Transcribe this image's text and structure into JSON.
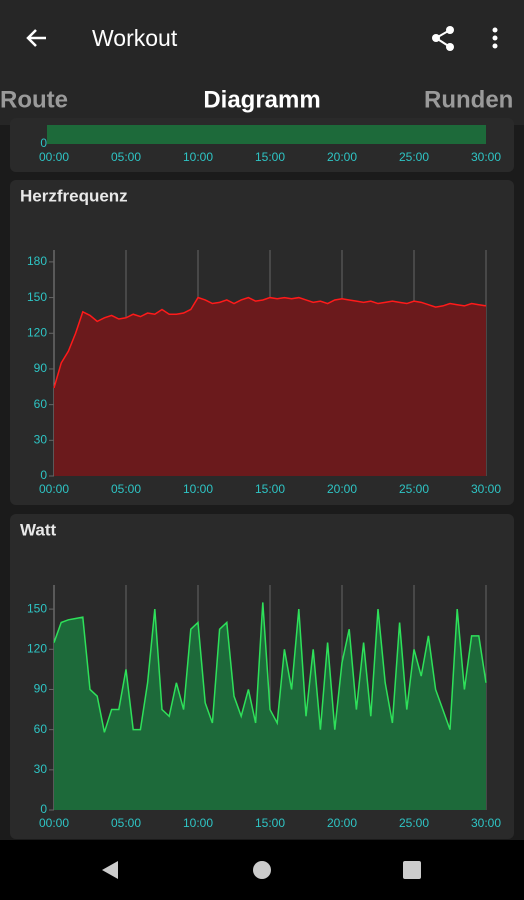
{
  "app_bar": {
    "title": "Workout"
  },
  "tabs": [
    "Route",
    "Diagramm",
    "Runden"
  ],
  "chart_data": [
    {
      "type": "area",
      "xlim": [
        0,
        30
      ],
      "xticks": [
        {
          "value": 0,
          "label": "00:00"
        },
        {
          "value": 5,
          "label": "05:00"
        },
        {
          "value": 10,
          "label": "10:00"
        },
        {
          "value": 15,
          "label": "15:00"
        },
        {
          "value": 20,
          "label": "20:00"
        },
        {
          "value": 25,
          "label": "25:00"
        },
        {
          "value": 30,
          "label": "30:00"
        }
      ],
      "yticks": [
        0
      ]
    },
    {
      "type": "area",
      "title": "Herzfrequenz",
      "xlim": [
        0,
        30
      ],
      "ylim": [
        0,
        190
      ],
      "xticks": [
        {
          "value": 0,
          "label": "00:00"
        },
        {
          "value": 5,
          "label": "05:00"
        },
        {
          "value": 10,
          "label": "10:00"
        },
        {
          "value": 15,
          "label": "15:00"
        },
        {
          "value": 20,
          "label": "20:00"
        },
        {
          "value": 25,
          "label": "25:00"
        },
        {
          "value": 30,
          "label": "30:00"
        }
      ],
      "yticks": [
        0,
        30,
        60,
        90,
        120,
        150,
        180
      ],
      "grid": true,
      "series": [
        {
          "color": "#ff1a1a",
          "fill": "#6b1a1c",
          "x": [
            0,
            0.5,
            1,
            1.5,
            2,
            2.5,
            3,
            3.5,
            4,
            4.5,
            5,
            5.5,
            6,
            6.5,
            7,
            7.5,
            8,
            8.5,
            9,
            9.5,
            10,
            10.5,
            11,
            11.5,
            12,
            12.5,
            13,
            13.5,
            14,
            14.5,
            15,
            15.5,
            16,
            16.5,
            17,
            17.5,
            18,
            18.5,
            19,
            19.5,
            20,
            20.5,
            21,
            21.5,
            22,
            22.5,
            23,
            23.5,
            24,
            24.5,
            25,
            25.5,
            26,
            26.5,
            27,
            27.5,
            28,
            28.5,
            29,
            29.5,
            30
          ],
          "values": [
            74,
            95,
            105,
            120,
            138,
            135,
            130,
            133,
            135,
            132,
            133,
            136,
            134,
            137,
            136,
            140,
            136,
            136,
            137,
            140,
            150,
            148,
            145,
            146,
            148,
            145,
            148,
            150,
            147,
            148,
            150,
            149,
            150,
            149,
            150,
            148,
            146,
            147,
            145,
            148,
            149,
            148,
            147,
            146,
            147,
            145,
            146,
            147,
            146,
            145,
            147,
            146,
            144,
            142,
            143,
            145,
            144,
            143,
            145,
            144,
            143
          ]
        }
      ]
    },
    {
      "type": "area",
      "title": "Watt",
      "xlim": [
        0,
        30
      ],
      "ylim": [
        0,
        168
      ],
      "xticks": [
        {
          "value": 0,
          "label": "00:00"
        },
        {
          "value": 5,
          "label": "05:00"
        },
        {
          "value": 10,
          "label": "10:00"
        },
        {
          "value": 15,
          "label": "15:00"
        },
        {
          "value": 20,
          "label": "20:00"
        },
        {
          "value": 25,
          "label": "25:00"
        },
        {
          "value": 30,
          "label": "30:00"
        }
      ],
      "yticks": [
        0,
        30,
        60,
        90,
        120,
        150
      ],
      "grid": true,
      "series": [
        {
          "color": "#2ee05a",
          "fill": "#1d6a3a",
          "x": [
            0,
            0.5,
            1,
            1.5,
            2,
            2.5,
            3,
            3.5,
            4,
            4.5,
            5,
            5.5,
            6,
            6.5,
            7,
            7.5,
            8,
            8.5,
            9,
            9.5,
            10,
            10.5,
            11,
            11.5,
            12,
            12.5,
            13,
            13.5,
            14,
            14.5,
            15,
            15.5,
            16,
            16.5,
            17,
            17.5,
            18,
            18.5,
            19,
            19.5,
            20,
            20.5,
            21,
            21.5,
            22,
            22.5,
            23,
            23.5,
            24,
            24.5,
            25,
            25.5,
            26,
            26.5,
            27,
            27.5,
            28,
            28.5,
            29,
            29.5,
            30
          ],
          "values": [
            125,
            140,
            142,
            143,
            144,
            90,
            85,
            58,
            75,
            75,
            105,
            60,
            60,
            95,
            150,
            75,
            70,
            95,
            75,
            135,
            140,
            80,
            65,
            135,
            140,
            85,
            70,
            90,
            65,
            155,
            75,
            65,
            120,
            90,
            150,
            70,
            120,
            60,
            125,
            60,
            110,
            135,
            75,
            125,
            70,
            150,
            95,
            65,
            140,
            75,
            120,
            100,
            130,
            90,
            75,
            60,
            150,
            90,
            130,
            130,
            95
          ]
        }
      ]
    }
  ]
}
